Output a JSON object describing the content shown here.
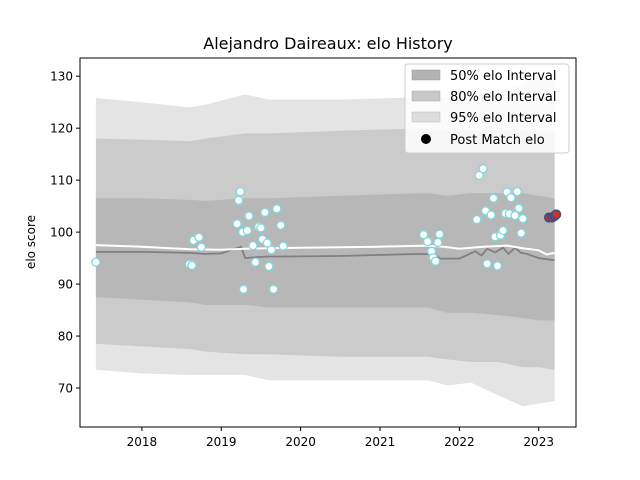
{
  "chart_data": {
    "type": "line",
    "title": "Alejandro Daireaux: elo History",
    "xlabel": "",
    "ylabel": "elo score",
    "xlim": [
      2017.22,
      2023.47
    ],
    "ylim": [
      62.5,
      133.5
    ],
    "x_ticks": [
      2018,
      2019,
      2020,
      2021,
      2022,
      2023
    ],
    "x_tick_labels": [
      "2018",
      "2019",
      "2020",
      "2021",
      "2022",
      "2023"
    ],
    "y_ticks": [
      70,
      80,
      90,
      100,
      110,
      120,
      130
    ],
    "y_tick_labels": [
      "70",
      "80",
      "90",
      "100",
      "110",
      "120",
      "130"
    ],
    "grid": false,
    "legend_position": "top-right",
    "legend": [
      {
        "label": "50% elo Interval",
        "kind": "patch",
        "color": "#b3b3b3"
      },
      {
        "label": "80% elo Interval",
        "kind": "patch",
        "color": "#c8c8c8"
      },
      {
        "label": "95% elo Interval",
        "kind": "patch",
        "color": "#dddddd"
      },
      {
        "label": "Post Match elo",
        "kind": "marker",
        "color": "#000000"
      }
    ],
    "colors": {
      "band50": "#b7b7b7",
      "band80": "#cbcbcb",
      "band95": "#e4e4e4",
      "median_line": "#808080",
      "mean_line": "#ffffff",
      "point_fill": "#ffffff",
      "point_edge": "#7fd8e0",
      "recent_fill": "#c0392b",
      "recent_edge": "#3a4a8a"
    },
    "bands": {
      "x": [
        2017.42,
        2018.0,
        2018.6,
        2018.8,
        2019.3,
        2019.6,
        2020.5,
        2021.6,
        2021.85,
        2022.15,
        2022.5,
        2022.8,
        2023.0,
        2023.2
      ],
      "band95_upper": [
        125.8,
        125.0,
        124.0,
        124.5,
        126.5,
        125.5,
        125.5,
        126.0,
        126.0,
        126.5,
        127.0,
        128.5,
        130.0,
        130.5
      ],
      "band95_lower": [
        73.5,
        72.8,
        72.5,
        72.5,
        72.5,
        71.5,
        71.5,
        71.5,
        70.5,
        71.0,
        68.5,
        66.5,
        67.0,
        67.5
      ],
      "band80_upper": [
        118.0,
        117.8,
        117.5,
        118.0,
        119.0,
        119.0,
        119.5,
        120.0,
        119.5,
        119.5,
        119.5,
        119.5,
        119.5,
        119.0
      ],
      "band80_lower": [
        78.5,
        78.0,
        77.5,
        77.0,
        76.5,
        76.5,
        76.0,
        76.0,
        75.5,
        75.0,
        75.0,
        74.0,
        74.0,
        73.5
      ],
      "band50_upper": [
        106.5,
        106.5,
        106.2,
        106.0,
        106.5,
        106.5,
        107.0,
        107.5,
        107.0,
        107.5,
        107.5,
        107.5,
        107.0,
        106.5
      ],
      "band50_lower": [
        87.5,
        87.0,
        86.5,
        86.0,
        86.0,
        85.5,
        85.5,
        85.5,
        84.5,
        84.5,
        84.0,
        83.5,
        83.0,
        83.0
      ]
    },
    "series": [
      {
        "x": [
          2017.42,
          2018.0,
          2018.6,
          2018.8,
          2019.0,
          2019.25,
          2019.3,
          2019.45,
          2019.6,
          2019.8,
          2020.5,
          2021.5,
          2021.7,
          2021.75,
          2022.0,
          2022.2,
          2022.28,
          2022.35,
          2022.45,
          2022.55,
          2022.62,
          2022.7,
          2022.78,
          2022.85,
          2023.0,
          2023.2
        ],
        "y": [
          96.2,
          96.2,
          96.0,
          95.8,
          95.9,
          97.2,
          95.0,
          95.2,
          95.3,
          95.3,
          95.4,
          95.8,
          95.7,
          94.9,
          94.9,
          96.3,
          95.5,
          96.8,
          96.1,
          97.0,
          95.8,
          97.0,
          96.0,
          95.8,
          95.0,
          94.6
        ]
      },
      {
        "x": [
          2017.42,
          2018.0,
          2018.6,
          2019.0,
          2019.3,
          2019.6,
          2020.0,
          2020.5,
          2021.0,
          2021.6,
          2021.8,
          2022.0,
          2022.3,
          2022.6,
          2022.8,
          2023.0,
          2023.1,
          2023.2
        ],
        "y": [
          97.5,
          97.2,
          96.7,
          96.6,
          96.8,
          96.9,
          97.0,
          97.1,
          97.2,
          97.4,
          97.2,
          96.8,
          97.2,
          97.4,
          96.9,
          96.5,
          95.7,
          96.0
        ]
      }
    ],
    "points": [
      {
        "x": 2017.42,
        "y": 94.2
      },
      {
        "x": 2018.6,
        "y": 93.8
      },
      {
        "x": 2018.63,
        "y": 93.6
      },
      {
        "x": 2018.65,
        "y": 98.4
      },
      {
        "x": 2018.72,
        "y": 99.0
      },
      {
        "x": 2018.75,
        "y": 97.1
      },
      {
        "x": 2019.2,
        "y": 101.6
      },
      {
        "x": 2019.22,
        "y": 106.1
      },
      {
        "x": 2019.24,
        "y": 107.8
      },
      {
        "x": 2019.27,
        "y": 100.0
      },
      {
        "x": 2019.28,
        "y": 89.0
      },
      {
        "x": 2019.33,
        "y": 100.3
      },
      {
        "x": 2019.35,
        "y": 103.1
      },
      {
        "x": 2019.4,
        "y": 97.4
      },
      {
        "x": 2019.43,
        "y": 94.2
      },
      {
        "x": 2019.47,
        "y": 101.0
      },
      {
        "x": 2019.5,
        "y": 100.8
      },
      {
        "x": 2019.52,
        "y": 98.6
      },
      {
        "x": 2019.55,
        "y": 103.8
      },
      {
        "x": 2019.58,
        "y": 97.9
      },
      {
        "x": 2019.6,
        "y": 93.4
      },
      {
        "x": 2019.63,
        "y": 96.6
      },
      {
        "x": 2019.66,
        "y": 89.0
      },
      {
        "x": 2019.7,
        "y": 104.5
      },
      {
        "x": 2019.75,
        "y": 101.3
      },
      {
        "x": 2019.78,
        "y": 97.3
      },
      {
        "x": 2021.55,
        "y": 99.5
      },
      {
        "x": 2021.6,
        "y": 98.2
      },
      {
        "x": 2021.65,
        "y": 96.3
      },
      {
        "x": 2021.67,
        "y": 95.1
      },
      {
        "x": 2021.7,
        "y": 94.4
      },
      {
        "x": 2021.73,
        "y": 98.0
      },
      {
        "x": 2021.75,
        "y": 99.6
      },
      {
        "x": 2022.22,
        "y": 102.4
      },
      {
        "x": 2022.25,
        "y": 110.9
      },
      {
        "x": 2022.3,
        "y": 112.2
      },
      {
        "x": 2022.33,
        "y": 104.1
      },
      {
        "x": 2022.35,
        "y": 93.9
      },
      {
        "x": 2022.4,
        "y": 103.3
      },
      {
        "x": 2022.43,
        "y": 106.5
      },
      {
        "x": 2022.45,
        "y": 99.1
      },
      {
        "x": 2022.48,
        "y": 93.5
      },
      {
        "x": 2022.52,
        "y": 99.4
      },
      {
        "x": 2022.55,
        "y": 100.3
      },
      {
        "x": 2022.58,
        "y": 103.6
      },
      {
        "x": 2022.6,
        "y": 107.7
      },
      {
        "x": 2022.63,
        "y": 103.5
      },
      {
        "x": 2022.65,
        "y": 106.6
      },
      {
        "x": 2022.7,
        "y": 103.2
      },
      {
        "x": 2022.73,
        "y": 107.8
      },
      {
        "x": 2022.75,
        "y": 104.6
      },
      {
        "x": 2022.78,
        "y": 99.8
      },
      {
        "x": 2022.8,
        "y": 102.6
      }
    ],
    "recent_points": [
      {
        "x": 2023.13,
        "y": 102.8
      },
      {
        "x": 2023.17,
        "y": 102.8
      },
      {
        "x": 2023.2,
        "y": 103.1
      },
      {
        "x": 2023.22,
        "y": 103.4
      }
    ]
  }
}
